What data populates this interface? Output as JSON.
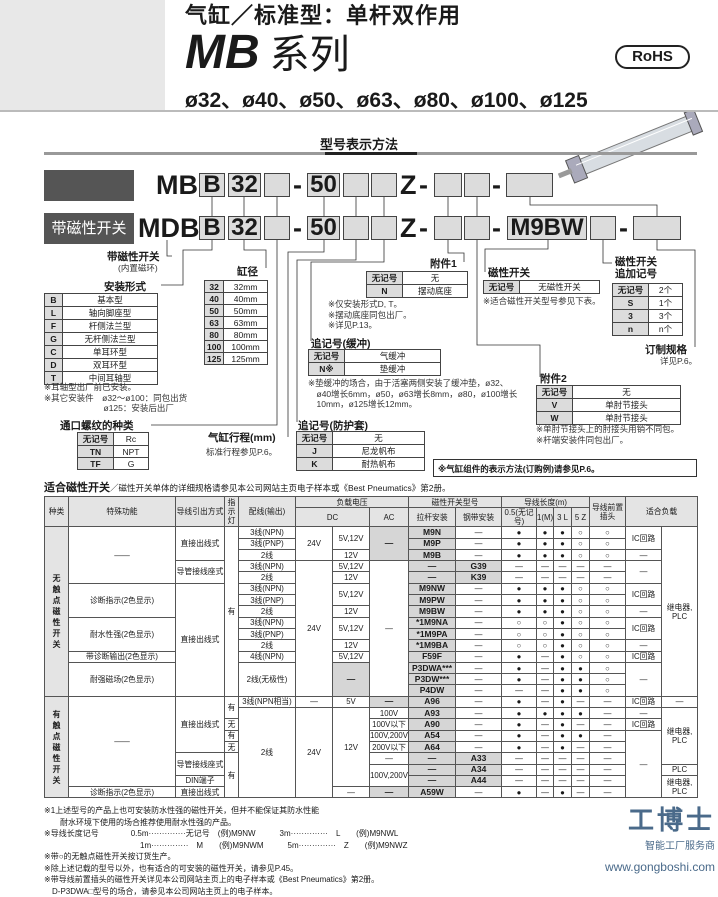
{
  "header": {
    "title": "气缸／标准型：单杆双作用",
    "series_code": "MB",
    "series_word": "系列",
    "bores": "ø32、ø40、ø50、ø63、ø80、ø100、ø125",
    "rohs": "RoHS"
  },
  "section_title": "型号表示方法",
  "model": {
    "row1": {
      "prefix": "MB",
      "b": "B",
      "bore": "32",
      "stroke": "50",
      "z": "Z",
      "dash": "-"
    },
    "row2": {
      "label": "带磁性开关",
      "prefix": "MDB",
      "b": "B",
      "bore": "32",
      "stroke": "50",
      "z": "Z",
      "switch": "M9BW",
      "dash": "-"
    }
  },
  "magnet": {
    "label": "带磁性开关",
    "sub": "(内置磁环)"
  },
  "mounting": {
    "label": "安装形式",
    "rows": [
      [
        "B",
        "基本型"
      ],
      [
        "L",
        "轴向脚座型"
      ],
      [
        "F",
        "杆侧法兰型"
      ],
      [
        "G",
        "无杆侧法兰型"
      ],
      [
        "C",
        "单耳环型"
      ],
      [
        "D",
        "双耳环型"
      ],
      [
        "T",
        "中间耳轴型"
      ]
    ],
    "notes": [
      "※耳轴型出厂前已安装。",
      "※其它安装件　ø32～ø100：同包出货",
      "　　　　　　　ø125：安装后出厂"
    ]
  },
  "bore": {
    "label": "缸径",
    "rows": [
      [
        "32",
        "32mm"
      ],
      [
        "40",
        "40mm"
      ],
      [
        "50",
        "50mm"
      ],
      [
        "63",
        "63mm"
      ],
      [
        "80",
        "80mm"
      ],
      [
        "100",
        "100mm"
      ],
      [
        "125",
        "125mm"
      ]
    ]
  },
  "port": {
    "label": "通口螺纹的种类",
    "rows": [
      [
        "无记号",
        "Rc"
      ],
      [
        "TN",
        "NPT"
      ],
      [
        "TF",
        "G"
      ]
    ]
  },
  "stroke": {
    "label": "气缸行程(mm)",
    "note": "标准行程参见P.6。"
  },
  "acc1": {
    "label": "附件1",
    "rows": [
      [
        "无记号",
        "无"
      ],
      [
        "N",
        "摆动底座"
      ]
    ],
    "notes": [
      "※仅安装形式D, T。",
      "※摆动底座同包出厂。",
      "※详见P.13。"
    ]
  },
  "cushion": {
    "label": "追记号(缓冲)",
    "rows": [
      [
        "无记号",
        "气缓冲"
      ],
      [
        "N※",
        "垫缓冲"
      ]
    ],
    "notes": [
      "※垫缓冲的场合，由于活塞两侧安装了缓冲垫，ø32、",
      "　ø40增长6mm，ø50，ø63增长8mm，ø80，ø100增长",
      "　10mm，ø125增长12mm。"
    ]
  },
  "boot": {
    "label": "追记号(防护套)",
    "rows": [
      [
        "无记号",
        "无"
      ],
      [
        "J",
        "尼龙帆布"
      ],
      [
        "K",
        "耐热帆布"
      ]
    ]
  },
  "switch": {
    "label": "磁性开关",
    "rows": [
      [
        "无记号",
        "无磁性开关"
      ]
    ],
    "note": "※适合磁性开关型号参见下表。"
  },
  "switch_qty": {
    "label1": "磁性开关",
    "label2": "追加记号",
    "rows": [
      [
        "无记号",
        "2个"
      ],
      [
        "S",
        "1个"
      ],
      [
        "3",
        "3个"
      ],
      [
        "n",
        "n个"
      ]
    ]
  },
  "custom": {
    "label": "订制规格",
    "note": "详见P.6。"
  },
  "acc2": {
    "label": "附件2",
    "rows": [
      [
        "无记号",
        "无"
      ],
      [
        "V",
        "单肘节接头"
      ],
      [
        "W",
        "单肘节接头"
      ]
    ],
    "notes": [
      "※单肘节接头上的肘接头用销不同包。",
      "※杆端安装件同包出厂。"
    ]
  },
  "order_note": "※气缸组件的表示方法(订购例)请参见P.6。",
  "switch_table": {
    "title": "适合磁性开关",
    "subtitle": "／磁性开关单体的详细规格请参见本公司网站主页电子样本或《Best Pneumatics》第2册。",
    "header1": [
      "种类",
      "特殊功能",
      "导线引出方式",
      "指示灯",
      "配线(输出)",
      "负载电压",
      "磁性开关型号",
      "导线长度(m)",
      "导线前置插头",
      "适合负载"
    ],
    "header2": [
      "DC",
      "AC",
      "拉杆安装",
      "钢带安装",
      "0.5(无记号)",
      "1(M)",
      "3 L",
      "5 Z"
    ],
    "rows": [
      [
        "无触点磁性开关",
        "——",
        "直接出线式",
        "有",
        "3线(NPN)",
        "24V",
        "5V,12V",
        "—",
        "M9N",
        "—",
        "●",
        "●",
        "●",
        "○",
        "○",
        "IC回路",
        "继电器, PLC"
      ],
      [
        "3线(PNP)",
        "M9P",
        "—",
        "●",
        "●",
        "●",
        "○",
        "○"
      ],
      [
        "2线",
        "12V",
        "M9B",
        "—",
        "●",
        "●",
        "●",
        "○",
        "○",
        "—"
      ],
      [
        "导管接线座式",
        "3线(NPN)",
        "24V",
        "5V,12V",
        "—",
        "—",
        "G39",
        "—",
        "—",
        "—",
        "—",
        "—",
        "—"
      ],
      [
        "2线",
        "12V",
        "—",
        "K39",
        "—",
        "—",
        "—",
        "—",
        "—"
      ],
      [
        "诊断指示(2色显示)",
        "直接出线式",
        "3线(NPN)",
        "5V,12V",
        "M9NW",
        "—",
        "●",
        "●",
        "●",
        "○",
        "○",
        "IC回路"
      ],
      [
        "3线(PNP)",
        "M9PW",
        "—",
        "●",
        "●",
        "●",
        "○",
        "○"
      ],
      [
        "2线",
        "12V",
        "M9BW",
        "—",
        "●",
        "●",
        "●",
        "○",
        "○",
        "—"
      ],
      [
        "耐水性强(2色显示)",
        "3线(NPN)",
        "5V,12V",
        "*1M9NA",
        "—",
        "○",
        "○",
        "●",
        "○",
        "○",
        "IC回路"
      ],
      [
        "3线(PNP)",
        "*1M9PA",
        "—",
        "○",
        "○",
        "●",
        "○",
        "○"
      ],
      [
        "2线",
        "12V",
        "*1M9BA",
        "—",
        "○",
        "○",
        "●",
        "○",
        "○",
        "—"
      ],
      [
        "带诊断输出(2色显示)",
        "4线(NPN)",
        "5V,12V",
        "F59F",
        "—",
        "●",
        "—",
        "●",
        "○",
        "○",
        "IC回路"
      ],
      [
        "耐强磁场(2色显示)",
        "2线(无极性)",
        "—",
        "P3DWA***",
        "—",
        "●",
        "—",
        "●",
        "●",
        "○",
        "—"
      ],
      [
        "P3DW***",
        "—",
        "●",
        "—",
        "●",
        "●",
        "○"
      ],
      [
        "P4DW",
        "—",
        "—",
        "—",
        "●",
        "●",
        "○"
      ],
      [
        "有触点磁性开关",
        "——",
        "直接出线式",
        "有",
        "3线(NPN相当)",
        "—",
        "5V",
        "—",
        "A96",
        "—",
        "●",
        "—",
        "●",
        "—",
        "—",
        "IC回路",
        "—"
      ],
      [
        "2线",
        "24V",
        "12V",
        "100V",
        "A93",
        "—",
        "●",
        "●",
        "●",
        "●",
        "—",
        "—",
        "继电器, PLC"
      ],
      [
        "无",
        "100V以下",
        "A90",
        "—",
        "●",
        "—",
        "●",
        "—",
        "—",
        "IC回路"
      ],
      [
        "有",
        "100V,200V",
        "A54",
        "—",
        "●",
        "—",
        "●",
        "●",
        "—",
        "—"
      ],
      [
        "无",
        "200V以下",
        "A64",
        "—",
        "●",
        "—",
        "●",
        "—",
        "—"
      ],
      [
        "导管接线座式",
        "有",
        "—",
        "—",
        "A33",
        "—",
        "—",
        "—",
        "—",
        "—"
      ],
      [
        "100V,200V",
        "—",
        "A34",
        "—",
        "—",
        "—",
        "—",
        "—",
        "PLC"
      ],
      [
        "DIN端子",
        "—",
        "A44",
        "—",
        "—",
        "—",
        "—",
        "—",
        "继电器, PLC"
      ],
      [
        "诊断指示(2色显示)",
        "直接出线式",
        "—",
        "—",
        "A59W",
        "—",
        "●",
        "—",
        "●",
        "—",
        "—"
      ]
    ]
  },
  "footnotes": [
    "※1上述型号的产品上也可安装防水性强的磁性开关，但并不能保证其防水性能",
    "　　耐水环境下使用的场合推荐使用耐水性强的产品。",
    "※导线长度记号　　　　0.5m··············无记号　(例)M9NW　　　3m··············　L　　(例)M9NWL",
    "　　　　　　　　　　　　1m··············　M　　(例)M9NWM　　　5m··············　Z　　(例)M9NWZ",
    "※带○的无触点磁性开关按订货生产。",
    "※除上述记载的型号以外，也有适合的可安装的磁性开关，请参见P.45。",
    "※带导线前置插头的磁性开关详见本公司网站主页上的电子样本或《Best Pneumatics》第2册。",
    "　D-P3DWA□型号的场合，请参见本公司网站主页上的电子样本。"
  ],
  "watermark": {
    "brand": "工博士",
    "tagline": "智能工厂服务商",
    "site": "www.gongboshi.com"
  }
}
